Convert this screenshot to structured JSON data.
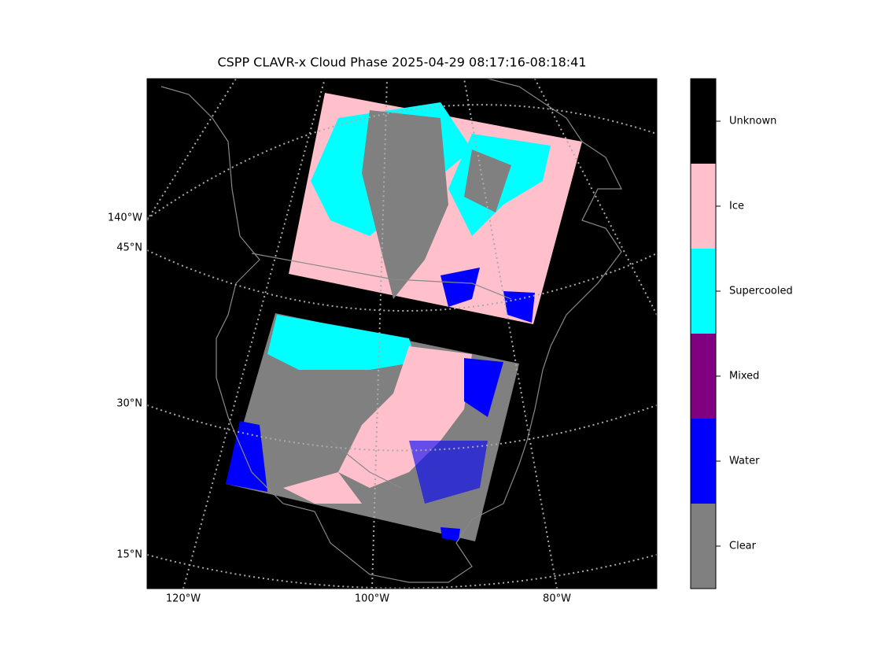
{
  "title": "CSPP CLAVR-x Cloud Phase 2025-04-29 08:17:16-08:18:41",
  "map": {
    "lat_labels": [
      "45°N",
      "30°N",
      "15°N"
    ],
    "lon_labels": [
      "140°W",
      "120°W",
      "100°W",
      "80°W"
    ]
  },
  "colorbar": {
    "classes": [
      {
        "label": "Clear",
        "color": "#808080"
      },
      {
        "label": "Water",
        "color": "#0000ff"
      },
      {
        "label": "Mixed",
        "color": "#800080"
      },
      {
        "label": "Supercooled",
        "color": "#00ffff"
      },
      {
        "label": "Ice",
        "color": "#ffc0cb"
      },
      {
        "label": "Unknown",
        "color": "#000000"
      }
    ]
  }
}
